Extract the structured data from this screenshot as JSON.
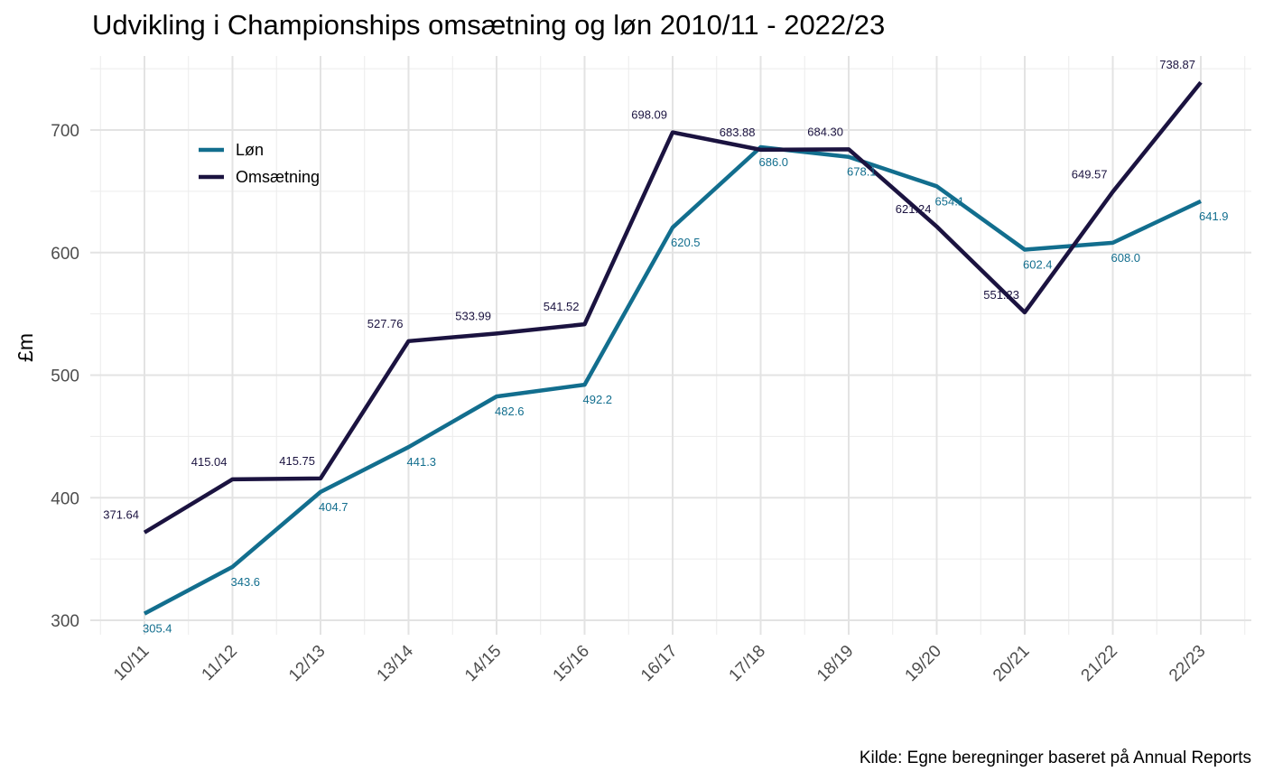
{
  "chart_data": {
    "type": "line",
    "title": "Udvikling i Championships omsætning og løn 2010/11 - 2022/23",
    "xlabel": "",
    "ylabel": "£m",
    "caption": "Kilde: Egne beregninger baseret på Annual Reports",
    "categories": [
      "10/11",
      "11/12",
      "12/13",
      "13/14",
      "14/15",
      "15/16",
      "16/17",
      "17/18",
      "18/19",
      "19/20",
      "20/21",
      "21/22",
      "22/23"
    ],
    "ylim": [
      290,
      750
    ],
    "yticks": [
      300,
      400,
      500,
      600,
      700
    ],
    "grid": true,
    "legend_position": "top-left",
    "series": [
      {
        "name": "Løn",
        "color": "#126e8e",
        "values": [
          305.4,
          343.6,
          404.7,
          441.3,
          482.6,
          492.2,
          620.5,
          686.0,
          678.1,
          654.1,
          602.4,
          608.0,
          641.9
        ],
        "labels": [
          "305.4",
          "343.6",
          "404.7",
          "441.3",
          "482.6",
          "492.2",
          "620.5",
          "686.0",
          "678.1",
          "654.1",
          "602.4",
          "608.0",
          "641.9"
        ]
      },
      {
        "name": "Omsætning",
        "color": "#1b1340",
        "values": [
          371.64,
          415.04,
          415.75,
          527.76,
          533.99,
          541.52,
          698.09,
          683.88,
          684.3,
          621.24,
          551.23,
          649.57,
          738.87
        ],
        "labels": [
          "371.64",
          "415.04",
          "415.75",
          "527.76",
          "533.99",
          "541.52",
          "698.09",
          "683.88",
          "684.30",
          "621.24",
          "551.23",
          "649.57",
          "738.87"
        ]
      }
    ]
  }
}
